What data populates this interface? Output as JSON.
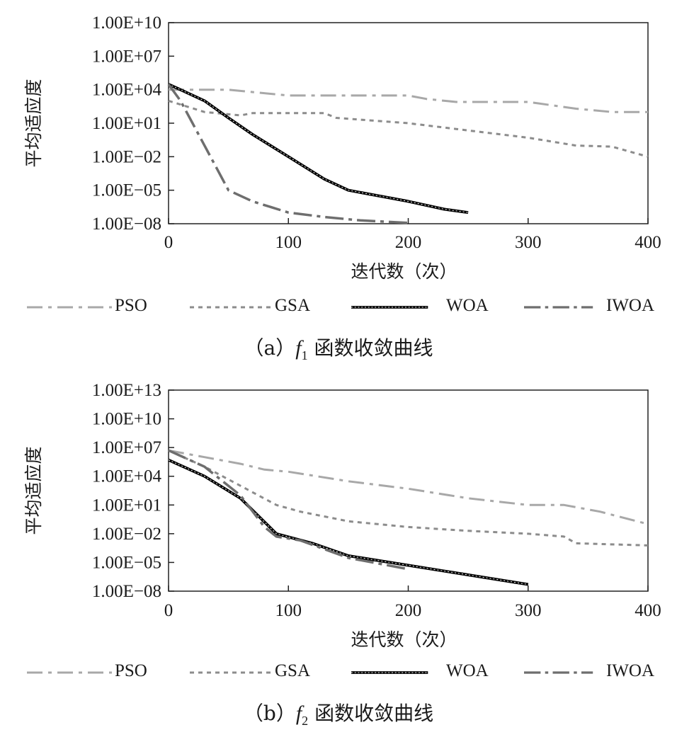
{
  "legend": [
    {
      "name": "PSO",
      "color": "#a8a8a8",
      "dash": "22 8 5 8",
      "width": 3
    },
    {
      "name": "GSA",
      "color": "#8c8c8c",
      "dash": "6 6",
      "width": 3
    },
    {
      "name": "WOA",
      "color": "#000000",
      "dash": "",
      "width": 3
    },
    {
      "name": "IWOA",
      "color": "#6e6e6e",
      "dash": "26 7 5 7",
      "width": 3.5
    }
  ],
  "chart_data": [
    {
      "type": "line",
      "panel": "a",
      "ylabel": "平均适应度",
      "xlabel": "迭代数（次）",
      "caption": {
        "prefix": "（a）",
        "func": "f",
        "sub": "1",
        "suffix": "函数收敛曲线"
      },
      "y_scale": "log",
      "ylim": [
        1e-08,
        10000000000.0
      ],
      "xlim": [
        0,
        400
      ],
      "y_tick_labels": [
        "1.00E+10",
        "1.00E+07",
        "1.00E+04",
        "1.00E+01",
        "1.00E−02",
        "1.00E−05",
        "1.00E−08"
      ],
      "x_tick_labels": [
        "0",
        "100",
        "200",
        "300",
        "400"
      ],
      "series": [
        {
          "name": "PSO",
          "points": [
            [
              0,
              10000.0
            ],
            [
              30,
              10000.0
            ],
            [
              50,
              10000.0
            ],
            [
              100,
              3000.0
            ],
            [
              150,
              3000.0
            ],
            [
              200,
              3000.0
            ],
            [
              215,
              1500.0
            ],
            [
              240,
              800
            ],
            [
              300,
              800
            ],
            [
              340,
              200
            ],
            [
              370,
              100
            ],
            [
              400,
              100
            ]
          ]
        },
        {
          "name": "GSA",
          "points": [
            [
              0,
              1000.0
            ],
            [
              30,
              100.0
            ],
            [
              60,
              50
            ],
            [
              70,
              80
            ],
            [
              130,
              80
            ],
            [
              140,
              30
            ],
            [
              200,
              10
            ],
            [
              240,
              3
            ],
            [
              300,
              0.5
            ],
            [
              340,
              0.1
            ],
            [
              370,
              0.08
            ],
            [
              400,
              0.01
            ]
          ]
        },
        {
          "name": "WOA",
          "points": [
            [
              0,
              30000.0
            ],
            [
              10,
              10000.0
            ],
            [
              30,
              1000.0
            ],
            [
              50,
              30
            ],
            [
              70,
              1
            ],
            [
              100,
              0.01
            ],
            [
              130,
              0.0001
            ],
            [
              150,
              1e-05
            ],
            [
              200,
              1e-06
            ],
            [
              230,
              2e-07
            ],
            [
              250,
              1e-07
            ]
          ]
        },
        {
          "name": "IWOA",
          "points": [
            [
              0,
              30000.0
            ],
            [
              10,
              1000.0
            ],
            [
              20,
              10
            ],
            [
              30,
              0.1
            ],
            [
              40,
              0.001
            ],
            [
              50,
              1e-05
            ],
            [
              70,
              1e-06
            ],
            [
              100,
              1e-07
            ],
            [
              130,
              4e-08
            ],
            [
              160,
              2e-08
            ],
            [
              200,
              1.2e-08
            ]
          ]
        }
      ]
    },
    {
      "type": "line",
      "panel": "b",
      "ylabel": "平均适应度",
      "xlabel": "迭代数（次）",
      "caption": {
        "prefix": "（b）",
        "func": "f",
        "sub": "2",
        "suffix": "函数收敛曲线"
      },
      "y_scale": "log",
      "ylim": [
        1e-08,
        10000000000000.0
      ],
      "xlim": [
        0,
        400
      ],
      "y_tick_labels": [
        "1.00E+13",
        "1.00E+10",
        "1.00E+07",
        "1.00E+04",
        "1.00E+01",
        "1.00E−02",
        "1.00E−05",
        "1.00E−08"
      ],
      "x_tick_labels": [
        "0",
        "100",
        "200",
        "300",
        "400"
      ],
      "series": [
        {
          "name": "PSO",
          "points": [
            [
              0,
              5000000.0
            ],
            [
              30,
              1000000.0
            ],
            [
              60,
              200000.0
            ],
            [
              80,
              50000.0
            ],
            [
              100,
              30000.0
            ],
            [
              150,
              3000.0
            ],
            [
              200,
              500
            ],
            [
              250,
              50
            ],
            [
              300,
              10
            ],
            [
              330,
              10
            ],
            [
              360,
              2
            ],
            [
              400,
              0.1
            ]
          ]
        },
        {
          "name": "GSA",
          "points": [
            [
              0,
              5000000.0
            ],
            [
              30,
              100000.0
            ],
            [
              60,
              1000.0
            ],
            [
              90,
              10
            ],
            [
              110,
              2
            ],
            [
              150,
              0.2
            ],
            [
              200,
              0.05
            ],
            [
              250,
              0.02
            ],
            [
              300,
              0.01
            ],
            [
              330,
              0.005
            ],
            [
              340,
              0.001
            ],
            [
              400,
              0.0006
            ]
          ]
        },
        {
          "name": "WOA",
          "points": [
            [
              0,
              500000.0
            ],
            [
              30,
              10000.0
            ],
            [
              60,
              50
            ],
            [
              90,
              0.01
            ],
            [
              120,
              0.001
            ],
            [
              150,
              5e-05
            ],
            [
              200,
              5e-06
            ],
            [
              250,
              5e-07
            ],
            [
              300,
              5e-08
            ]
          ]
        },
        {
          "name": "IWOA",
          "points": [
            [
              0,
              5000000.0
            ],
            [
              30,
              100000.0
            ],
            [
              60,
              100
            ],
            [
              80,
              0.05
            ],
            [
              90,
              0.005
            ],
            [
              110,
              0.002
            ],
            [
              150,
              3e-05
            ],
            [
              200,
              2e-06
            ]
          ]
        }
      ]
    }
  ]
}
